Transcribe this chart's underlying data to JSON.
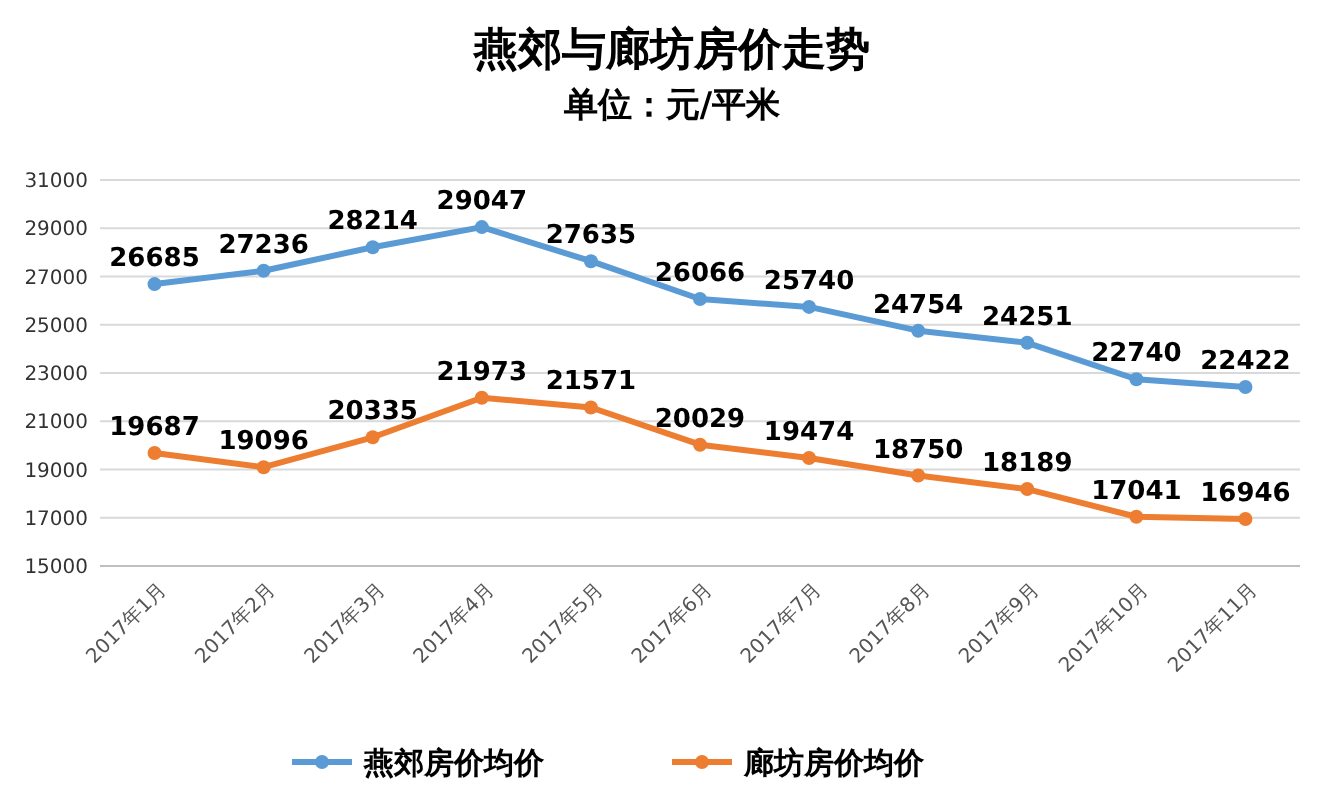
{
  "chart_data": {
    "type": "line",
    "title": "燕郊与廊坊房价走势",
    "subtitle": "单位：元/平米",
    "categories": [
      "2017年1月",
      "2017年2月",
      "2017年3月",
      "2017年4月",
      "2017年5月",
      "2017年6月",
      "2017年7月",
      "2017年8月",
      "2017年9月",
      "2017年10月",
      "2017年11月"
    ],
    "series": [
      {
        "name": "燕郊房价均价",
        "color": "#5b9bd5",
        "values": [
          26685,
          27236,
          28214,
          29047,
          27635,
          26066,
          25740,
          24754,
          24251,
          22740,
          22422
        ]
      },
      {
        "name": "廊坊房价均价",
        "color": "#ed7d31",
        "values": [
          19687,
          19096,
          20335,
          21973,
          21571,
          20029,
          19474,
          18750,
          18189,
          17041,
          16946
        ]
      }
    ],
    "ylim": [
      15000,
      31000
    ],
    "yticks": [
      15000,
      17000,
      19000,
      21000,
      23000,
      25000,
      27000,
      29000,
      31000
    ],
    "grid": "y",
    "legend": "bottom",
    "marker": "circle",
    "line_style": "solid",
    "data_labels": true
  }
}
